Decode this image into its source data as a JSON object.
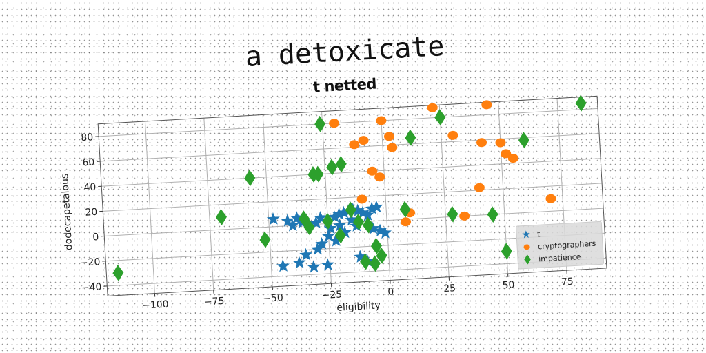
{
  "figure": {
    "title": "a detoxicate"
  },
  "chart_data": {
    "type": "scatter",
    "title": "t netted",
    "xlabel": "eligibility",
    "ylabel": "dodecapetalous",
    "xlim": [
      -120,
      92
    ],
    "ylim": [
      -48,
      90
    ],
    "xticks": [
      -100,
      -75,
      -50,
      -25,
      0,
      25,
      50,
      75
    ],
    "yticks": [
      -40,
      -20,
      0,
      20,
      40,
      60,
      80
    ],
    "xtick_labels": [
      "−100",
      "−75",
      "−50",
      "−25",
      "0",
      "25",
      "50",
      "75"
    ],
    "ytick_labels": [
      "−40",
      "−20",
      "0",
      "20",
      "40",
      "60",
      "80"
    ],
    "grid": true,
    "legend_position": "lower-right",
    "series": [
      {
        "name": "t",
        "marker": "star",
        "color": "#1f77b4",
        "points": [
          [
            -48,
            6
          ],
          [
            -42,
            4
          ],
          [
            -38,
            6
          ],
          [
            -40,
            0
          ],
          [
            -36,
            2
          ],
          [
            -33,
            0
          ],
          [
            -30,
            1
          ],
          [
            -28,
            5
          ],
          [
            -25,
            2
          ],
          [
            -22,
            5
          ],
          [
            -20,
            7
          ],
          [
            -18,
            8
          ],
          [
            -16,
            9
          ],
          [
            -14,
            10
          ],
          [
            -12,
            9
          ],
          [
            -10,
            7
          ],
          [
            -8,
            5
          ],
          [
            -6,
            10
          ],
          [
            -4,
            11
          ],
          [
            -15,
            2
          ],
          [
            -20,
            -2
          ],
          [
            -18,
            -8
          ],
          [
            -22,
            -14
          ],
          [
            -25,
            -10
          ],
          [
            -28,
            -16
          ],
          [
            -30,
            -20
          ],
          [
            -35,
            -24
          ],
          [
            -38,
            -30
          ],
          [
            -45,
            -32
          ],
          [
            -32,
            -34
          ],
          [
            -26,
            -33
          ],
          [
            -12,
            -28
          ],
          [
            -9,
            -32
          ],
          [
            -3,
            -8
          ],
          [
            -1,
            -10
          ],
          [
            -6,
            -6
          ],
          [
            -13,
            -3
          ],
          [
            -24,
            -4
          ]
        ]
      },
      {
        "name": "cryptographers",
        "marker": "circle",
        "color": "#ff7f0e",
        "points": [
          [
            -20,
            80
          ],
          [
            -8,
            65
          ],
          [
            -12,
            62
          ],
          [
            0,
            80
          ],
          [
            3,
            67
          ],
          [
            4,
            58
          ],
          [
            -5,
            40
          ],
          [
            -2,
            35
          ],
          [
            -10,
            18
          ],
          [
            10,
            5
          ],
          [
            8,
            -2
          ],
          [
            22,
            88
          ],
          [
            45,
            88
          ],
          [
            30,
            65
          ],
          [
            42,
            58
          ],
          [
            50,
            57
          ],
          [
            52,
            48
          ],
          [
            55,
            44
          ],
          [
            40,
            22
          ],
          [
            70,
            10
          ],
          [
            33,
            0
          ]
        ]
      },
      {
        "name": "impatience",
        "marker": "diamond",
        "color": "#2ca02c",
        "points": [
          [
            -115,
            -30
          ],
          [
            -70,
            10
          ],
          [
            -57,
            40
          ],
          [
            -52,
            -10
          ],
          [
            -35,
            5
          ],
          [
            -33,
            -2
          ],
          [
            -30,
            40
          ],
          [
            -28,
            40
          ],
          [
            -26,
            80
          ],
          [
            -25,
            2
          ],
          [
            -22,
            45
          ],
          [
            -18,
            47
          ],
          [
            -15,
            10
          ],
          [
            -8,
            -3
          ],
          [
            -5,
            -20
          ],
          [
            -3,
            -28
          ],
          [
            -6,
            -34
          ],
          [
            -10,
            -32
          ],
          [
            -20,
            -10
          ],
          [
            -12,
            0
          ],
          [
            8,
            8
          ],
          [
            12,
            65
          ],
          [
            25,
            80
          ],
          [
            28,
            2
          ],
          [
            45,
            0
          ],
          [
            50,
            -30
          ],
          [
            60,
            58
          ],
          [
            85,
            85
          ]
        ]
      }
    ]
  }
}
